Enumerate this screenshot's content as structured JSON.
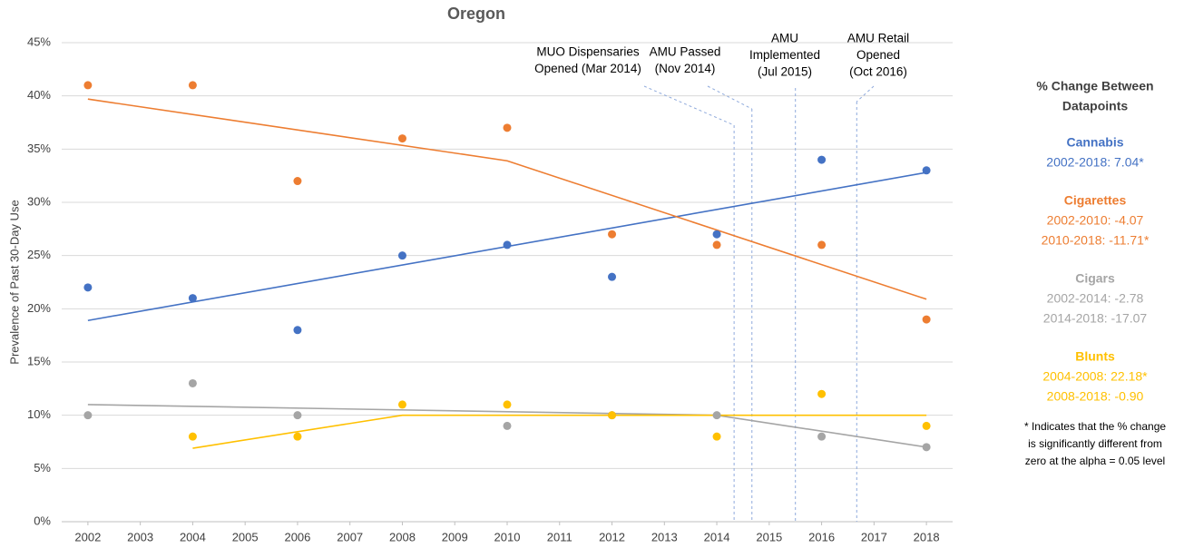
{
  "chart_data": {
    "type": "scatter",
    "title": "Oregon",
    "y_label": "Prevalence of Past 30-Day Use",
    "x": [
      2002,
      2004,
      2006,
      2008,
      2010,
      2012,
      2014,
      2016,
      2018
    ],
    "xlim": [
      2001.5,
      2018.5
    ],
    "xticks": [
      2002,
      2003,
      2004,
      2005,
      2006,
      2007,
      2008,
      2009,
      2010,
      2011,
      2012,
      2013,
      2014,
      2015,
      2016,
      2017,
      2018
    ],
    "ylim": [
      0,
      45
    ],
    "yticks": [
      {
        "value": 0,
        "label": "0%"
      },
      {
        "value": 5,
        "label": "5%"
      },
      {
        "value": 10,
        "label": "10%"
      },
      {
        "value": 15,
        "label": "15%"
      },
      {
        "value": 20,
        "label": "20%"
      },
      {
        "value": 25,
        "label": "25%"
      },
      {
        "value": 30,
        "label": "30%"
      },
      {
        "value": 35,
        "label": "35%"
      },
      {
        "value": 40,
        "label": "40%"
      },
      {
        "value": 45,
        "label": "45%"
      }
    ],
    "grid": true,
    "series": [
      {
        "name": "Cannabis",
        "color": "#4472c4",
        "values": [
          22,
          21,
          18,
          25,
          26,
          23,
          27,
          34,
          33
        ],
        "trend_x": [
          2002,
          2018
        ],
        "trend_values": [
          18.9,
          32.8
        ]
      },
      {
        "name": "Cigarettes",
        "color": "#ed7d31",
        "values": [
          41,
          41,
          32,
          36,
          37,
          27,
          26,
          26,
          19
        ],
        "trend_x": [
          2002,
          2010,
          2018
        ],
        "trend_values": [
          39.7,
          33.9,
          20.9
        ]
      },
      {
        "name": "Cigars",
        "color": "#a5a5a5",
        "values": [
          10,
          13,
          10,
          null,
          9,
          10,
          10,
          8,
          7
        ],
        "trend_x": [
          2002,
          2014,
          2018
        ],
        "trend_values": [
          11.0,
          10.0,
          7.0
        ]
      },
      {
        "name": "Blunts",
        "color": "#ffc000",
        "values": [
          null,
          8,
          8,
          11,
          11,
          10,
          8,
          12,
          9
        ],
        "trend_x": [
          2004,
          2008,
          2018
        ],
        "trend_values": [
          6.9,
          10.0,
          10.0
        ]
      }
    ],
    "events": [
      {
        "x": 2014.33,
        "lines": [
          "MUO Dispensaries",
          "Opened (Mar 2014)"
        ]
      },
      {
        "x": 2014.67,
        "lines": [
          "AMU Passed",
          "(Nov 2014)"
        ]
      },
      {
        "x": 2015.5,
        "lines": [
          "AMU",
          "Implemented",
          "(Jul 2015)"
        ]
      },
      {
        "x": 2016.67,
        "lines": [
          "AMU Retail",
          "Opened",
          "(Oct 2016)"
        ]
      }
    ],
    "side_panel": {
      "heading": [
        "% Change Between",
        "Datapoints"
      ],
      "groups": [
        {
          "name": "Cannabis",
          "lines": [
            "2002-2018: 7.04*"
          ]
        },
        {
          "name": "Cigarettes",
          "lines": [
            "2002-2010: -4.07",
            "2010-2018: -11.71*"
          ]
        },
        {
          "name": "Cigars",
          "lines": [
            "2002-2014: -2.78",
            "2014-2018: -17.07"
          ]
        },
        {
          "name": "Blunts",
          "lines": [
            "2004-2008: 22.18*",
            "2008-2018: -0.90"
          ]
        }
      ],
      "footnote": [
        "* Indicates that the % change",
        "is significantly different from",
        "zero at the alpha = 0.05 level"
      ]
    }
  }
}
